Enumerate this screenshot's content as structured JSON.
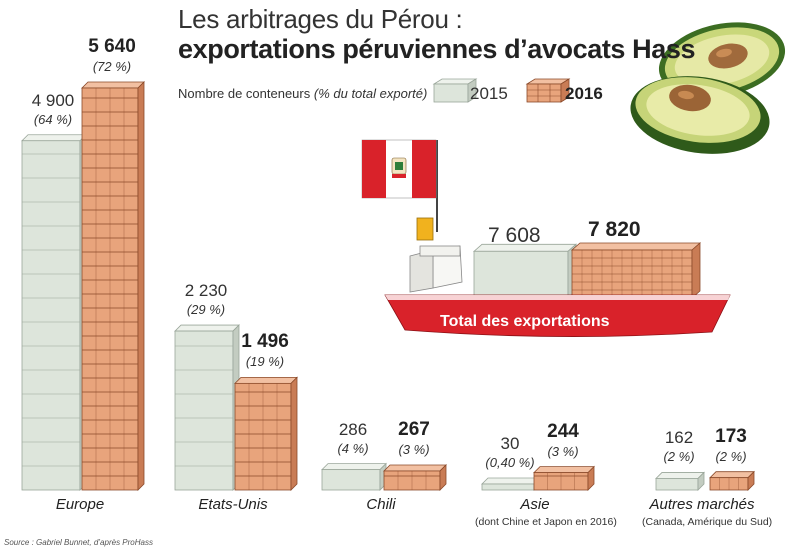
{
  "title": "Les arbitrages du Pérou :",
  "subtitle": "exportations péruviennes d’avocats Hass",
  "legend": {
    "label": "Nombre de conteneurs",
    "label_note": "(% du total exporté)",
    "series_2015": "2015",
    "series_2016": "2016"
  },
  "colors": {
    "2015": "#dde5db",
    "2016": "#e8a47c",
    "ship_red": "#d9222a",
    "flag_red": "#d9222a"
  },
  "source": "Source : Gabriel Bunnet, d’après ProHass",
  "chart_data": {
    "type": "bar",
    "title": "Les arbitrages du Pérou : exportations péruviennes d’avocats Hass",
    "ylabel": "Nombre de conteneurs (% du total exporté)",
    "categories": [
      "Europe",
      "Etats-Unis",
      "Chili",
      "Asie",
      "Autres marchés"
    ],
    "category_notes": [
      "",
      "",
      "",
      "(dont Chine et Japon en 2016)",
      "(Canada, Amérique du Sud)"
    ],
    "series": [
      {
        "name": "2015",
        "values": [
          4900,
          2230,
          286,
          30,
          162
        ],
        "value_labels": [
          "4 900",
          "2 230",
          "286",
          "30",
          "162"
        ],
        "pct_labels": [
          "(64 %)",
          "(29 %)",
          "(4 %)",
          "(0,40 %)",
          "(2 %)"
        ]
      },
      {
        "name": "2016",
        "values": [
          5640,
          1496,
          267,
          244,
          173
        ],
        "value_labels": [
          "5 640",
          "1 496",
          "267",
          "244",
          "173"
        ],
        "pct_labels": [
          "(72 %)",
          "(19 %)",
          "(3 %)",
          "(3 %)",
          "(2 %)"
        ]
      }
    ],
    "total": {
      "label": "Total des exportations",
      "values": [
        7608,
        7820
      ],
      "value_labels": [
        "7 608",
        "7 820"
      ]
    },
    "ylim": [
      0,
      5640
    ],
    "grid": false,
    "legend_position": "top"
  }
}
